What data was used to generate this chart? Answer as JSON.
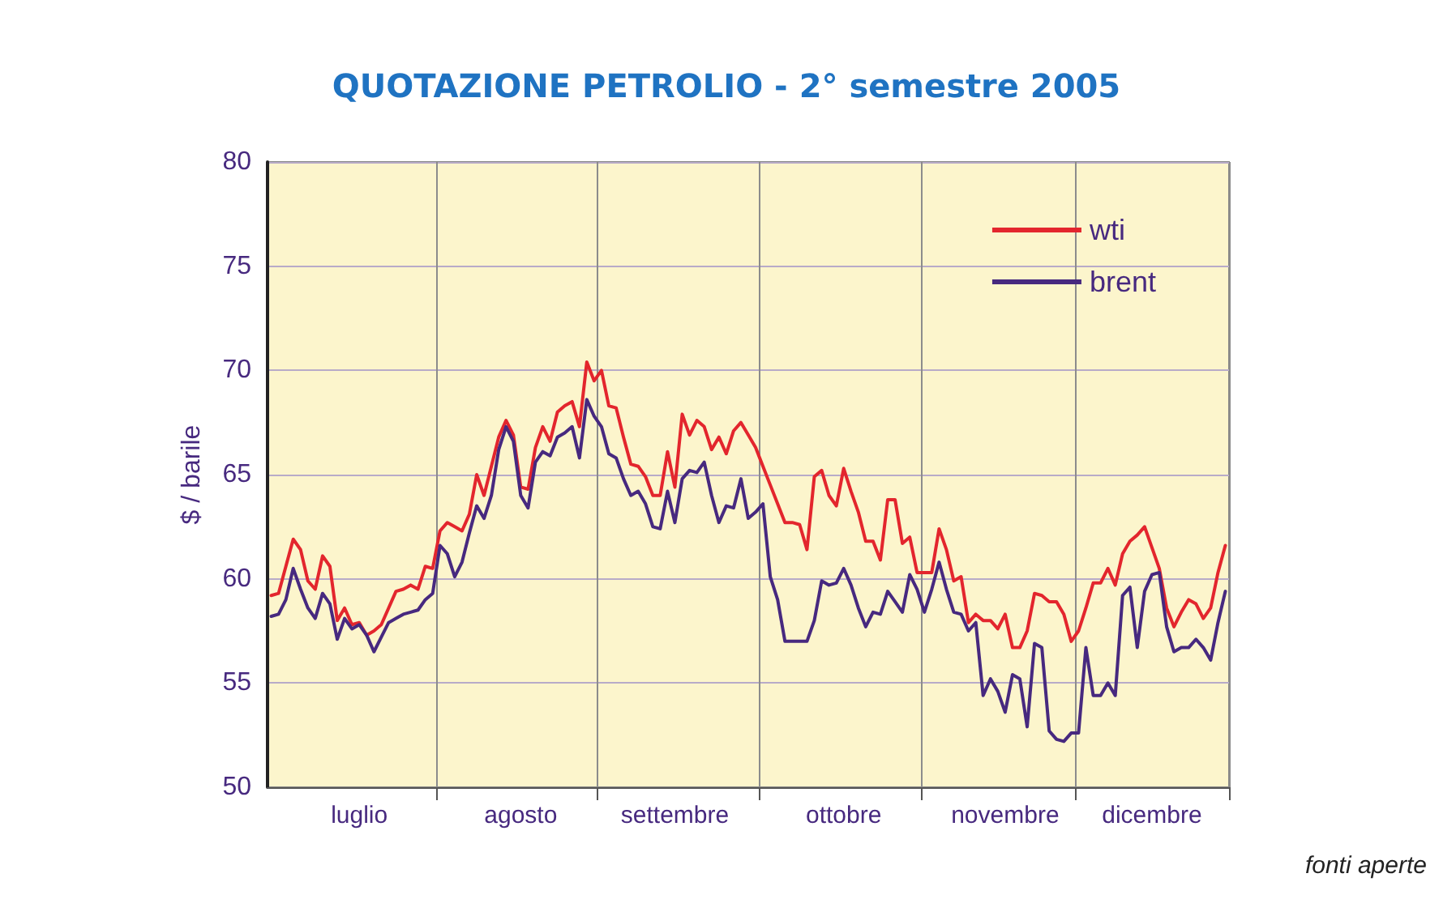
{
  "chart_data": {
    "type": "line",
    "title": "QUOTAZIONE PETROLIO - 2° semestre 2005",
    "ylabel": "$ / barile",
    "annotations": [
      "fonti aperte"
    ],
    "categories": [
      null,
      null,
      null,
      null,
      null,
      null,
      null,
      null,
      null,
      null,
      null,
      null,
      "luglio",
      null,
      null,
      null,
      null,
      null,
      null,
      null,
      null,
      null,
      null,
      null,
      null,
      null,
      null,
      null,
      null,
      null,
      null,
      null,
      null,
      null,
      "agosto",
      null,
      null,
      null,
      null,
      null,
      null,
      null,
      null,
      null,
      null,
      null,
      null,
      null,
      null,
      null,
      null,
      null,
      null,
      null,
      null,
      "settembre",
      null,
      null,
      null,
      null,
      null,
      null,
      null,
      null,
      null,
      null,
      null,
      null,
      null,
      null,
      null,
      null,
      null,
      null,
      null,
      null,
      null,
      null,
      "ottobre",
      null,
      null,
      null,
      null,
      null,
      null,
      null,
      null,
      null,
      null,
      null,
      null,
      null,
      null,
      null,
      null,
      null,
      null,
      null,
      null,
      null,
      "novembre",
      null,
      null,
      null,
      null,
      null,
      null,
      null,
      null,
      null,
      null,
      null,
      null,
      null,
      null,
      null,
      null,
      null,
      null,
      null,
      "dicembre",
      null,
      null,
      null,
      null,
      null,
      null,
      null,
      null,
      null,
      null
    ],
    "ylim": [
      50,
      80
    ],
    "yticks": [
      50,
      55,
      60,
      65,
      70,
      75,
      80
    ],
    "grid": true,
    "legend": "top right",
    "marker": "none",
    "line_style": "solid",
    "series": [
      {
        "name": "wti",
        "color": "#e3262d",
        "values": [
          59.2,
          59.3,
          60.6,
          61.9,
          61.4,
          59.9,
          59.5,
          61.1,
          60.6,
          58.0,
          58.6,
          57.8,
          57.9,
          57.3,
          57.5,
          57.8,
          58.6,
          59.4,
          59.5,
          59.7,
          59.5,
          60.6,
          60.5,
          62.3,
          62.7,
          62.5,
          62.3,
          63.1,
          65.0,
          64.0,
          65.4,
          66.8,
          67.6,
          66.9,
          64.4,
          64.3,
          66.3,
          67.3,
          66.6,
          68.0,
          68.3,
          68.5,
          67.3,
          70.4,
          69.5,
          70.0,
          68.3,
          68.2,
          66.8,
          65.5,
          65.4,
          64.9,
          64.0,
          64.0,
          66.1,
          64.4,
          67.9,
          66.9,
          67.6,
          67.3,
          66.2,
          66.8,
          66.0,
          67.1,
          67.5,
          66.9,
          66.3,
          65.4,
          64.5,
          63.6,
          62.7,
          62.7,
          62.6,
          61.4,
          64.9,
          65.2,
          64.0,
          63.5,
          65.3,
          64.2,
          63.2,
          61.8,
          61.8,
          60.9,
          63.8,
          63.8,
          61.7,
          62.0,
          60.3,
          60.3,
          60.3,
          62.4,
          61.4,
          59.9,
          60.1,
          57.9,
          58.3,
          58.0,
          58.0,
          57.6,
          58.3,
          56.7,
          56.7,
          57.5,
          59.3,
          59.2,
          58.9,
          58.9,
          58.3,
          57.0,
          57.5,
          58.6,
          59.8,
          59.8,
          60.5,
          59.7,
          61.2,
          61.8,
          62.1,
          62.5,
          61.5,
          60.5,
          58.6,
          57.7,
          58.4,
          59.0,
          58.8,
          58.1,
          58.6,
          60.3,
          61.6
        ]
      },
      {
        "name": "brent",
        "color": "#47297f",
        "values": [
          58.2,
          58.3,
          59.0,
          60.5,
          59.5,
          58.6,
          58.1,
          59.3,
          58.8,
          57.1,
          58.1,
          57.6,
          57.8,
          57.3,
          56.5,
          57.2,
          57.9,
          58.1,
          58.3,
          58.4,
          58.5,
          59.0,
          59.3,
          61.6,
          61.2,
          60.1,
          60.8,
          62.2,
          63.5,
          62.9,
          64.0,
          66.2,
          67.3,
          66.6,
          64.0,
          63.4,
          65.6,
          66.1,
          65.9,
          66.8,
          67.0,
          67.3,
          65.8,
          68.6,
          67.8,
          67.3,
          66.0,
          65.8,
          64.8,
          64.0,
          64.2,
          63.6,
          62.5,
          62.4,
          64.2,
          62.7,
          64.8,
          65.2,
          65.1,
          65.6,
          64.0,
          62.7,
          63.5,
          63.4,
          64.8,
          62.9,
          63.2,
          63.6,
          60.1,
          59.0,
          57.0,
          57.0,
          57.0,
          57.0,
          58.0,
          59.9,
          59.7,
          59.8,
          60.5,
          59.7,
          58.6,
          57.7,
          58.4,
          58.3,
          59.4,
          58.9,
          58.4,
          60.2,
          59.5,
          58.4,
          59.5,
          60.8,
          59.5,
          58.4,
          58.3,
          57.5,
          57.9,
          54.4,
          55.2,
          54.6,
          53.6,
          55.4,
          55.2,
          52.9,
          56.9,
          56.7,
          52.7,
          52.3,
          52.2,
          52.6,
          52.6,
          56.7,
          54.4,
          54.4,
          55.0,
          54.4,
          59.2,
          59.6,
          56.7,
          59.4,
          60.2,
          60.3,
          57.7,
          56.5,
          56.7,
          56.7,
          57.1,
          56.7,
          56.1,
          57.9,
          59.4
        ]
      }
    ]
  }
}
